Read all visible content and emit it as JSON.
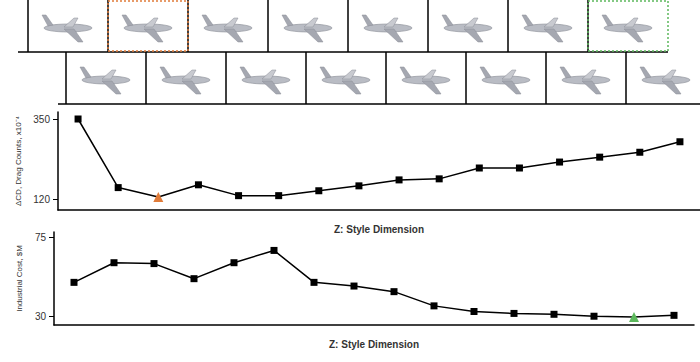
{
  "chart_data": [
    {
      "type": "line",
      "y_label": "ΔCD, Drag Counts, x10⁻⁴",
      "x_label": "Z: Style Dimension",
      "categories": [
        null,
        null,
        null,
        null,
        null,
        null,
        null,
        null,
        null,
        null,
        null,
        null,
        null,
        null,
        null,
        null
      ],
      "series": [
        {
          "color": "#000000",
          "marker": "square",
          "values": [
            350,
            154,
            127,
            162,
            131,
            131,
            145,
            159,
            176,
            179,
            210,
            210,
            227,
            241,
            255,
            285
          ],
          "colors": [
            "#000000",
            "#000000",
            "#e07b39",
            "#000000",
            "#000000",
            "#000000",
            "#000000",
            "#000000",
            "#000000",
            "#000000",
            "#000000",
            "#000000",
            "#000000",
            "#000000",
            "#000000",
            "#000000"
          ]
        }
      ],
      "ylim": [
        90,
        370
      ],
      "yticks": [
        120,
        350
      ],
      "grid": false,
      "tick_labels": "y"
    },
    {
      "type": "line",
      "y_label": "Industrial Cost, $M",
      "x_label": "Z: Style Dimension",
      "categories": [
        null,
        null,
        null,
        null,
        null,
        null,
        null,
        null,
        null,
        null,
        null,
        null,
        null,
        null,
        null,
        null
      ],
      "series": [
        {
          "color": "#000000",
          "marker": "square",
          "values": [
            49.3,
            60.5,
            60,
            51.4,
            60.5,
            67.5,
            49.3,
            47.2,
            44,
            35.9,
            32.7,
            31.6,
            31.1,
            30,
            29.5,
            30.5
          ],
          "colors": [
            "#000000",
            "#000000",
            "#000000",
            "#000000",
            "#000000",
            "#000000",
            "#000000",
            "#000000",
            "#000000",
            "#000000",
            "#000000",
            "#000000",
            "#000000",
            "#000000",
            "#5cb85c",
            "#000000"
          ]
        }
      ],
      "ylim": [
        25,
        78
      ],
      "yticks": [
        30,
        75
      ],
      "grid": false,
      "tick_labels": "y"
    }
  ]
}
